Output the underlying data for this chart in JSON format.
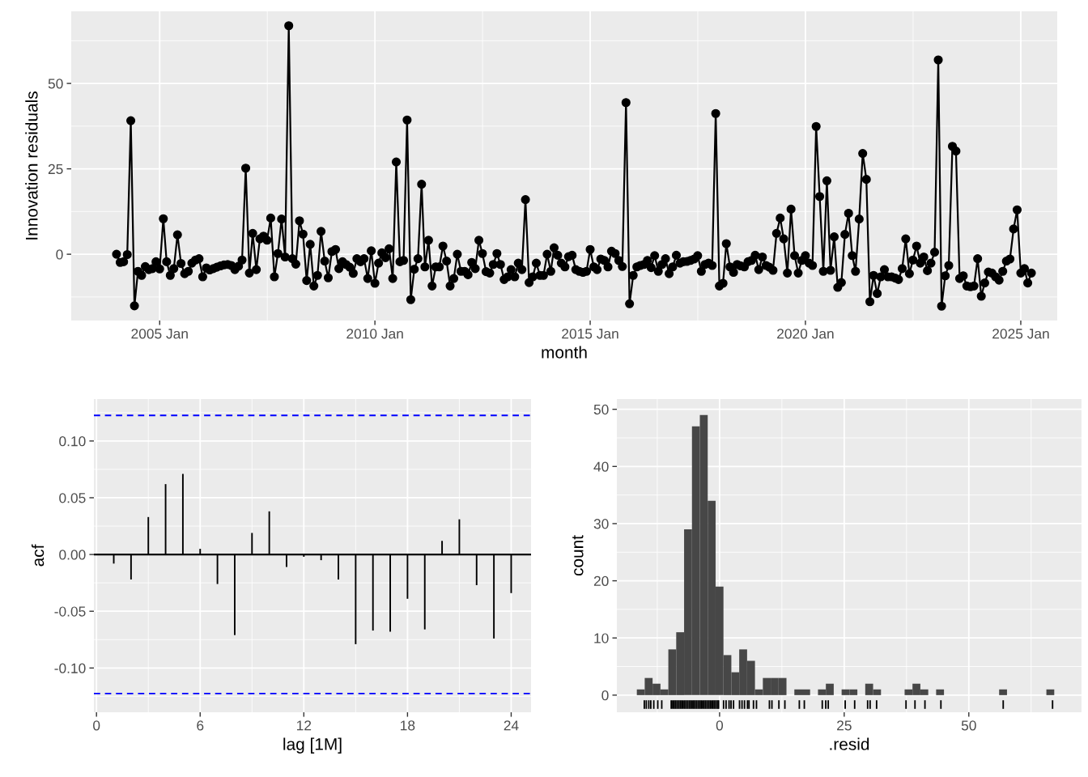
{
  "chart_data": [
    {
      "type": "line",
      "xlabel": "month",
      "ylabel": "Innovation residuals",
      "color": "#000000",
      "marker": "circle",
      "grid": true,
      "xlim": [
        "2002-12-13",
        "2025-11-06"
      ],
      "ylim": [
        -19.4,
        71.1
      ],
      "yticks": [
        0,
        25,
        50
      ],
      "xticks": [
        {
          "value": "2005-01",
          "label": "2005 Jan"
        },
        {
          "value": "2010-01",
          "label": "2010 Jan"
        },
        {
          "value": "2015-01",
          "label": "2015 Jan"
        },
        {
          "value": "2020-01",
          "label": "2020 Jan"
        },
        {
          "value": "2025-01",
          "label": "2025 Jan"
        }
      ],
      "x": [
        "2004-01",
        "2004-02",
        "2004-03",
        "2004-04",
        "2004-05",
        "2004-06",
        "2004-07",
        "2004-08",
        "2004-09",
        "2004-10",
        "2004-11",
        "2004-12",
        "2005-01",
        "2005-02",
        "2005-03",
        "2005-04",
        "2005-05",
        "2005-06",
        "2005-07",
        "2005-08",
        "2005-09",
        "2005-10",
        "2005-11",
        "2005-12",
        "2006-01",
        "2006-02",
        "2006-03",
        "2006-04",
        "2006-05",
        "2006-06",
        "2006-07",
        "2006-08",
        "2006-09",
        "2006-10",
        "2006-11",
        "2006-12",
        "2007-01",
        "2007-02",
        "2007-03",
        "2007-04",
        "2007-05",
        "2007-06",
        "2007-07",
        "2007-08",
        "2007-09",
        "2007-10",
        "2007-11",
        "2007-12",
        "2008-01",
        "2008-02",
        "2008-03",
        "2008-04",
        "2008-05",
        "2008-06",
        "2008-07",
        "2008-08",
        "2008-09",
        "2008-10",
        "2008-11",
        "2008-12",
        "2009-01",
        "2009-02",
        "2009-03",
        "2009-04",
        "2009-05",
        "2009-06",
        "2009-07",
        "2009-08",
        "2009-09",
        "2009-10",
        "2009-11",
        "2009-12",
        "2010-01",
        "2010-02",
        "2010-03",
        "2010-04",
        "2010-05",
        "2010-06",
        "2010-07",
        "2010-08",
        "2010-09",
        "2010-10",
        "2010-11",
        "2010-12",
        "2011-01",
        "2011-02",
        "2011-03",
        "2011-04",
        "2011-05",
        "2011-06",
        "2011-07",
        "2011-08",
        "2011-09",
        "2011-10",
        "2011-11",
        "2011-12",
        "2012-01",
        "2012-02",
        "2012-03",
        "2012-04",
        "2012-05",
        "2012-06",
        "2012-07",
        "2012-08",
        "2012-09",
        "2012-10",
        "2012-11",
        "2012-12",
        "2013-01",
        "2013-02",
        "2013-03",
        "2013-04",
        "2013-05",
        "2013-06",
        "2013-07",
        "2013-08",
        "2013-09",
        "2013-10",
        "2013-11",
        "2013-12",
        "2014-01",
        "2014-02",
        "2014-03",
        "2014-04",
        "2014-05",
        "2014-06",
        "2014-07",
        "2014-08",
        "2014-09",
        "2014-10",
        "2014-11",
        "2014-12",
        "2015-01",
        "2015-02",
        "2015-03",
        "2015-04",
        "2015-05",
        "2015-06",
        "2015-07",
        "2015-08",
        "2015-09",
        "2015-10",
        "2015-11",
        "2015-12",
        "2016-01",
        "2016-02",
        "2016-03",
        "2016-04",
        "2016-05",
        "2016-06",
        "2016-07",
        "2016-08",
        "2016-09",
        "2016-10",
        "2016-11",
        "2016-12",
        "2017-01",
        "2017-02",
        "2017-03",
        "2017-04",
        "2017-05",
        "2017-06",
        "2017-07",
        "2017-08",
        "2017-09",
        "2017-10",
        "2017-11",
        "2017-12",
        "2018-01",
        "2018-02",
        "2018-03",
        "2018-04",
        "2018-05",
        "2018-06",
        "2018-07",
        "2018-08",
        "2018-09",
        "2018-10",
        "2018-11",
        "2018-12",
        "2019-01",
        "2019-02",
        "2019-03",
        "2019-04",
        "2019-05",
        "2019-06",
        "2019-07",
        "2019-08",
        "2019-09",
        "2019-10",
        "2019-11",
        "2019-12",
        "2020-01",
        "2020-02",
        "2020-03",
        "2020-04",
        "2020-05",
        "2020-06",
        "2020-07",
        "2020-08",
        "2020-09",
        "2020-10",
        "2020-11",
        "2020-12",
        "2021-01",
        "2021-02",
        "2021-03",
        "2021-04",
        "2021-05",
        "2021-06",
        "2021-07",
        "2021-08",
        "2021-09",
        "2021-10",
        "2021-11",
        "2021-12",
        "2022-01",
        "2022-02",
        "2022-03",
        "2022-04",
        "2022-05",
        "2022-06",
        "2022-07",
        "2022-08",
        "2022-09",
        "2022-10",
        "2022-11",
        "2022-12",
        "2023-01",
        "2023-02",
        "2023-03",
        "2023-04",
        "2023-05",
        "2023-06",
        "2023-07",
        "2023-08",
        "2023-09",
        "2023-10",
        "2023-11",
        "2023-12",
        "2024-01",
        "2024-02",
        "2024-03",
        "2024-04",
        "2024-05",
        "2024-06",
        "2024-07",
        "2024-08",
        "2024-09",
        "2024-10",
        "2024-11",
        "2024-12",
        "2025-01",
        "2025-02",
        "2025-03",
        "2025-04"
      ],
      "values": [
        0.0,
        -2.4,
        -2.2,
        -0.1,
        39.1,
        -15.1,
        -5.0,
        -6.2,
        -3.6,
        -4.5,
        -4.2,
        -2.2,
        -4.3,
        10.4,
        -2.2,
        -6.2,
        -4.2,
        5.7,
        -2.7,
        -5.7,
        -5.0,
        -2.6,
        -1.7,
        -1.3,
        -6.6,
        -4.0,
        -4.6,
        -4.2,
        -3.8,
        -3.4,
        -3.1,
        -3.0,
        -3.3,
        -4.5,
        -3.5,
        -1.7,
        25.2,
        -5.5,
        6.1,
        -4.5,
        4.5,
        5.3,
        4.1,
        10.6,
        -6.6,
        0.2,
        10.3,
        -0.8,
        66.9,
        -1.3,
        -2.9,
        9.8,
        5.9,
        -7.7,
        2.9,
        -9.3,
        -6.2,
        6.7,
        -2.0,
        -6.9,
        0.8,
        1.4,
        -4.2,
        -2.2,
        -3.0,
        -3.8,
        -5.6,
        -1.3,
        -2.2,
        -1.3,
        -7.1,
        1.0,
        -8.5,
        -2.6,
        0.4,
        -1.0,
        1.6,
        -7.1,
        27.0,
        -2.2,
        -1.8,
        39.3,
        -13.3,
        -4.4,
        -1.3,
        20.5,
        -3.7,
        4.1,
        -9.3,
        -3.7,
        -3.7,
        2.4,
        -2.0,
        -9.3,
        -7.1,
        0.0,
        -5.0,
        -5.0,
        -6.0,
        -2.4,
        -4.2,
        4.1,
        0.2,
        -5.1,
        -5.5,
        -3.0,
        0.2,
        -3.0,
        -7.4,
        -6.6,
        -4.5,
        -6.6,
        -2.6,
        -4.5,
        16.0,
        -8.3,
        -6.6,
        -2.6,
        -6.2,
        -6.2,
        0.0,
        -5.0,
        1.9,
        -0.3,
        -2.6,
        -3.7,
        -0.7,
        -0.3,
        -4.5,
        -5.0,
        -5.3,
        -5.0,
        1.4,
        -3.7,
        -4.5,
        -1.4,
        -1.8,
        -3.7,
        0.9,
        0.2,
        -1.8,
        -3.6,
        44.4,
        -14.5,
        -6.2,
        -3.7,
        -3.3,
        -3.0,
        -1.8,
        -3.9,
        -0.4,
        -5.0,
        -3.0,
        -1.3,
        -5.7,
        -3.7,
        -0.3,
        -2.6,
        -2.2,
        -2.1,
        -1.8,
        -1.4,
        -0.4,
        -5.0,
        -3.0,
        -2.6,
        -3.3,
        41.2,
        -9.3,
        -8.5,
        3.1,
        -3.7,
        -5.3,
        -3.0,
        -3.4,
        -3.7,
        -2.2,
        -1.8,
        -0.3,
        -4.5,
        -0.8,
        -3.3,
        -3.8,
        -4.7,
        6.1,
        10.6,
        4.5,
        -5.5,
        13.2,
        -0.4,
        -5.5,
        -1.8,
        -0.4,
        -2.6,
        -3.3,
        37.4,
        16.9,
        -5.0,
        21.5,
        -4.7,
        5.1,
        -9.7,
        -8.3,
        5.8,
        12.0,
        -0.4,
        -5.0,
        10.3,
        29.5,
        21.9,
        -13.9,
        -6.2,
        -11.5,
        -6.6,
        -4.5,
        -6.6,
        -6.6,
        -7.0,
        -7.4,
        -4.2,
        4.5,
        -5.7,
        -1.7,
        2.4,
        -2.6,
        -0.8,
        -4.8,
        -2.6,
        0.6,
        56.9,
        -15.2,
        -6.3,
        -3.3,
        31.6,
        30.2,
        -7.1,
        -6.3,
        -9.3,
        -9.5,
        -9.3,
        -1.3,
        -12.3,
        -8.4,
        -5.2,
        -5.5,
        -6.6,
        -7.6,
        -5.0,
        -2.0,
        -1.4,
        7.4,
        13.0,
        -5.5,
        -4.2,
        -8.4,
        -5.5
      ]
    },
    {
      "type": "bar",
      "xlabel": "lag [1M]",
      "ylabel": "acf",
      "color": "#000000",
      "grid": true,
      "xlim": [
        -0.15,
        25.15
      ],
      "xticks": [
        0,
        6,
        12,
        18,
        24
      ],
      "ylim": [
        -0.139,
        0.137
      ],
      "yticks": [
        {
          "value": -0.1,
          "label": "-0.10"
        },
        {
          "value": -0.05,
          "label": "-0.05"
        },
        {
          "value": 0,
          "label": "0.00"
        },
        {
          "value": 0.05,
          "label": "0.05"
        },
        {
          "value": 0.1,
          "label": "0.10"
        }
      ],
      "x": [
        1,
        2,
        3,
        4,
        5,
        6,
        7,
        8,
        9,
        10,
        11,
        12,
        13,
        14,
        15,
        16,
        17,
        18,
        19,
        20,
        21,
        22,
        23,
        24
      ],
      "values": [
        -0.008,
        -0.022,
        0.033,
        0.062,
        0.071,
        0.005,
        -0.026,
        -0.071,
        0.019,
        0.038,
        -0.011,
        -0.002,
        -0.005,
        -0.022,
        -0.079,
        -0.067,
        -0.068,
        -0.039,
        -0.066,
        0.012,
        0.031,
        -0.027,
        -0.074,
        -0.034
      ],
      "ref_lines": [
        {
          "axis": "y",
          "value": 0,
          "color": "#000000",
          "line_style": "solid"
        },
        {
          "axis": "y",
          "value": 0.1225,
          "color": "#0000ff",
          "line_style": "dashed"
        },
        {
          "axis": "y",
          "value": -0.1225,
          "color": "#0000ff",
          "line_style": "dashed"
        }
      ]
    },
    {
      "type": "histogram",
      "xlabel": ".resid",
      "ylabel": "count",
      "color": "#474747",
      "grid": true,
      "xlim": [
        -20.6,
        72.6
      ],
      "xticks": [
        0,
        25,
        50
      ],
      "ylim": [
        -3.0,
        51.8
      ],
      "yticks": [
        0,
        10,
        20,
        30,
        40,
        50
      ],
      "bins": [
        -16.6,
        -15.02,
        -13.44,
        -11.86,
        -10.28,
        -8.7,
        -7.12,
        -5.54,
        -3.96,
        -2.38,
        -0.8,
        0.78,
        2.36,
        3.94,
        5.52,
        7.1,
        8.68,
        10.26,
        11.84,
        13.42,
        15.0,
        16.58,
        18.16,
        19.74,
        21.32,
        22.9,
        24.48,
        26.06,
        27.64,
        29.22,
        30.8,
        32.38,
        33.96,
        35.54,
        37.12,
        38.7,
        40.28,
        41.86,
        43.44,
        45.02,
        46.6,
        48.18,
        49.76,
        51.34,
        52.92,
        54.5,
        56.08,
        57.66,
        59.24,
        60.82,
        62.4,
        63.98,
        65.56,
        67.14
      ],
      "values": [
        1,
        3,
        2,
        1,
        8,
        11,
        29,
        47,
        49,
        34,
        19,
        7,
        4,
        8,
        6,
        1,
        3,
        3,
        3,
        0,
        1,
        1,
        0,
        1,
        2,
        0,
        1,
        1,
        0,
        2,
        1,
        0,
        0,
        0,
        1,
        2,
        1,
        0,
        1,
        0,
        0,
        0,
        0,
        0,
        0,
        0,
        1,
        0,
        0,
        0,
        0,
        0,
        1
      ],
      "series": [
        {
          "type": "bar",
          "color": "#000000",
          "base": [
            -2.4,
            -2.4,
            -2.4,
            -2.4,
            -2.4,
            -2.4,
            -2.4,
            -2.4,
            -2.4,
            -2.4,
            -2.4,
            -2.4,
            -2.4,
            -2.4,
            -2.4,
            -2.4,
            -2.4,
            -2.4,
            -2.4,
            -2.4,
            -2.4,
            -2.4,
            -2.4,
            -2.4,
            -2.4,
            -2.4,
            -2.4,
            -2.4,
            -2.4,
            -2.4,
            -2.4,
            -2.4,
            -2.4,
            -2.4,
            -2.4,
            -2.4,
            -2.4,
            -2.4,
            -2.4,
            -2.4,
            -2.4,
            -2.4,
            -2.4,
            -2.4,
            -2.4,
            -2.4,
            -2.4,
            -2.4,
            -2.4,
            -2.4,
            -2.4,
            -2.4,
            -2.4,
            -2.4,
            -2.4,
            -2.4,
            -2.4,
            -2.4,
            -2.4,
            -2.4,
            -2.4,
            -2.4,
            -2.4,
            -2.4,
            -2.4,
            -2.4,
            -2.4,
            -2.4,
            -2.4,
            -2.4,
            -2.4,
            -2.4
          ],
          "values": [
            1.5,
            1.5,
            1.5,
            1.5,
            1.5,
            1.5,
            1.5,
            1.5,
            1.5,
            1.5,
            1.5,
            1.5,
            1.5,
            1.5,
            1.5,
            1.5,
            1.5,
            1.5,
            1.5,
            1.5,
            1.5,
            1.5,
            1.5,
            1.5,
            1.5,
            1.5,
            1.5,
            1.5,
            1.5,
            1.5,
            1.5,
            1.5,
            1.5,
            1.5,
            1.5,
            1.5,
            1.5,
            1.5,
            1.5,
            1.5,
            1.5,
            1.5,
            1.5,
            1.5,
            1.5,
            1.5,
            1.5,
            1.5,
            1.5,
            1.5,
            1.5,
            1.5,
            1.5,
            1.5,
            1.5,
            1.5,
            1.5,
            1.5,
            1.5,
            1.5,
            1.5,
            1.5,
            1.5,
            1.5,
            1.5,
            1.5,
            1.5,
            1.5,
            1.5,
            1.5,
            1.5,
            1.5
          ],
          "x": [
            -15.1,
            -14.7,
            -14.2,
            -13.8,
            -13.2,
            -12.4,
            -11.6,
            -9.7,
            -9.4,
            -9.1,
            -8.8,
            -8.5,
            -8.2,
            -7.9,
            -7.6,
            -7.3,
            -7.0,
            -6.7,
            -6.4,
            -6.1,
            -5.8,
            -5.5,
            -5.2,
            -4.9,
            -4.6,
            -4.3,
            -4.0,
            -3.7,
            -3.4,
            -3.1,
            -2.8,
            -2.5,
            -2.2,
            -1.9,
            -1.6,
            -1.3,
            -1.0,
            -0.7,
            -0.4,
            -0.2,
            0.8,
            1.3,
            1.9,
            2.3,
            2.8,
            4.0,
            4.5,
            5.0,
            5.6,
            5.9,
            6.8,
            7.4,
            10.0,
            10.5,
            11.9,
            13.1,
            16.0,
            17.0,
            20.6,
            21.3,
            21.8,
            25.2,
            27.1,
            29.7,
            30.2,
            31.5,
            37.4,
            39.2,
            41.2,
            44.4,
            56.9,
            66.8
          ]
        }
      ]
    }
  ]
}
